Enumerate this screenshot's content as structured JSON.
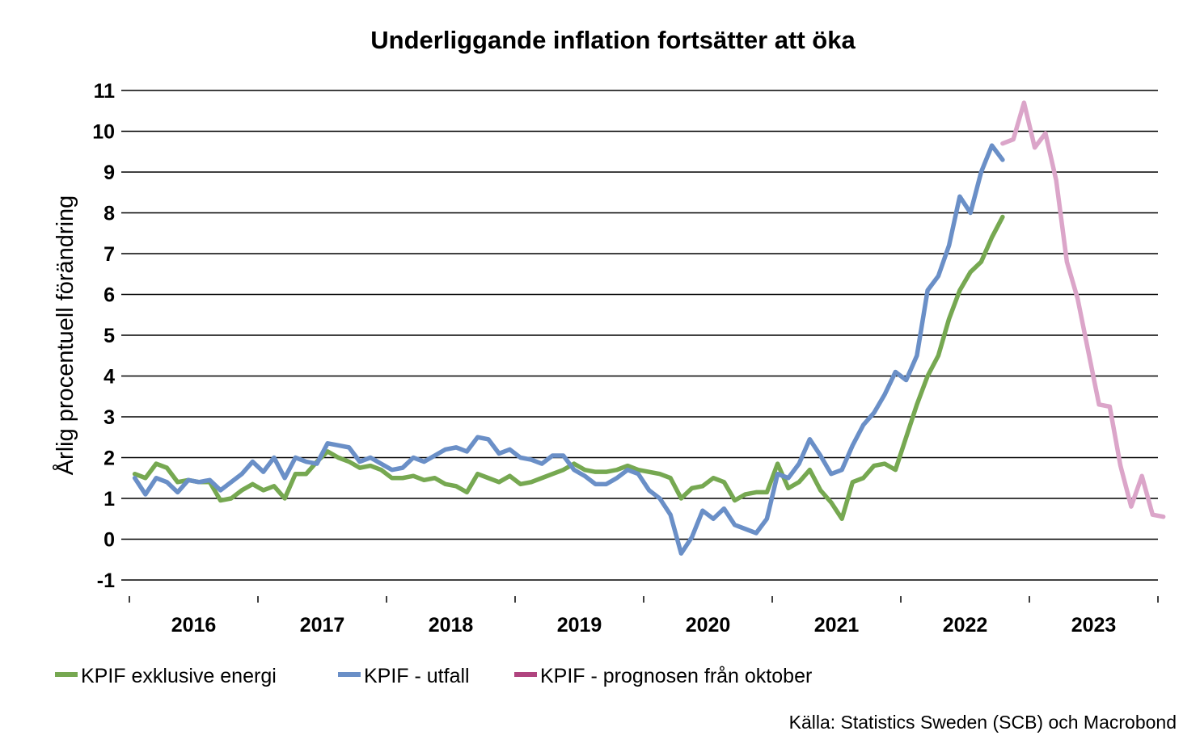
{
  "chart_data": {
    "type": "line",
    "title": "Underliggande inflation fortsätter att öka",
    "ylabel": "Årlig procentuell förändring",
    "xlabel": "",
    "ylim": [
      -1,
      11
    ],
    "yticks": [
      -1,
      0,
      1,
      2,
      3,
      4,
      5,
      6,
      7,
      8,
      9,
      10,
      11
    ],
    "x_axis": {
      "start_month": "2016-01",
      "end_month": "2023-12",
      "tick_labels": [
        "2016",
        "2017",
        "2018",
        "2019",
        "2020",
        "2021",
        "2022",
        "2023"
      ]
    },
    "grid": "horizontal",
    "legend_position": "bottom-left",
    "source": "Källa: Statistics Sweden (SCB) och Macrobond",
    "series": [
      {
        "name": "KPIF exklusive energi",
        "color": "#76a851",
        "start_month": "2016-01",
        "values": [
          1.6,
          1.5,
          1.85,
          1.75,
          1.4,
          1.45,
          1.4,
          1.4,
          0.95,
          1.0,
          1.2,
          1.35,
          1.2,
          1.3,
          1.0,
          1.6,
          1.6,
          1.9,
          2.15,
          2.0,
          1.9,
          1.75,
          1.8,
          1.7,
          1.5,
          1.5,
          1.55,
          1.45,
          1.5,
          1.35,
          1.3,
          1.15,
          1.6,
          1.5,
          1.4,
          1.55,
          1.35,
          1.4,
          1.5,
          1.6,
          1.7,
          1.85,
          1.7,
          1.65,
          1.65,
          1.7,
          1.8,
          1.7,
          1.65,
          1.6,
          1.5,
          1.0,
          1.25,
          1.3,
          1.5,
          1.4,
          0.95,
          1.1,
          1.15,
          1.15,
          1.85,
          1.25,
          1.4,
          1.7,
          1.2,
          0.9,
          0.5,
          1.4,
          1.5,
          1.8,
          1.85,
          1.7,
          2.5,
          3.3,
          4.0,
          4.5,
          5.4,
          6.1,
          6.55,
          6.8,
          7.4,
          7.9
        ]
      },
      {
        "name": "KPIF - utfall",
        "color": "#6a8fc7",
        "start_month": "2016-01",
        "values": [
          1.5,
          1.1,
          1.5,
          1.4,
          1.15,
          1.45,
          1.4,
          1.45,
          1.2,
          1.4,
          1.6,
          1.9,
          1.65,
          2.0,
          1.5,
          2.0,
          1.9,
          1.85,
          2.35,
          2.3,
          2.25,
          1.9,
          2.0,
          1.85,
          1.7,
          1.75,
          2.0,
          1.9,
          2.05,
          2.2,
          2.25,
          2.15,
          2.5,
          2.45,
          2.1,
          2.2,
          2.0,
          1.95,
          1.85,
          2.05,
          2.05,
          1.7,
          1.55,
          1.35,
          1.35,
          1.5,
          1.7,
          1.6,
          1.2,
          1.0,
          0.6,
          -0.35,
          0.05,
          0.7,
          0.5,
          0.75,
          0.35,
          0.25,
          0.15,
          0.5,
          1.6,
          1.5,
          1.85,
          2.45,
          2.05,
          1.6,
          1.7,
          2.3,
          2.8,
          3.1,
          3.55,
          4.1,
          3.9,
          4.5,
          6.1,
          6.45,
          7.2,
          8.4,
          8.0,
          9.0,
          9.65,
          9.3
        ]
      },
      {
        "name": "KPIF - prognosen från oktober",
        "color": "#dba5c9",
        "legend_color": "#b0447f",
        "start_month": "2022-10",
        "values": [
          9.7,
          9.8,
          10.7,
          9.6,
          9.95,
          8.8,
          6.8,
          5.9,
          4.6,
          3.3,
          3.25,
          1.8,
          0.8,
          1.55,
          0.6,
          0.55
        ]
      }
    ]
  }
}
